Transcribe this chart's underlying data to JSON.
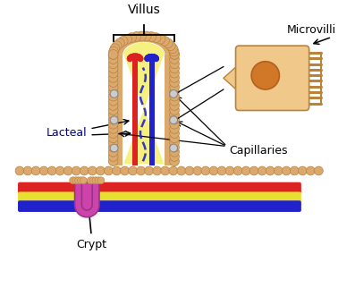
{
  "bg_color": "#ffffff",
  "villus_color": "#dba96e",
  "villus_edge": "#b8833a",
  "cell_fill": "#f0c88a",
  "nucleus_fill": "#d07828",
  "lacteal_color": "#f5f080",
  "red_vessel": "#dd2222",
  "blue_vessel": "#2222cc",
  "yellow_vessel": "#e8e030",
  "crypt_color": "#cc44aa",
  "crypt_edge": "#993388",
  "label_color": "#000000",
  "label_lacteal": "#00008B",
  "labels": {
    "villus": "Villus",
    "microvilli": "Microvilli",
    "lacteal": "Lacteal",
    "capillaries": "Capillaries",
    "crypt": "Crypt"
  },
  "figsize": [
    3.97,
    3.41
  ],
  "dpi": 100
}
